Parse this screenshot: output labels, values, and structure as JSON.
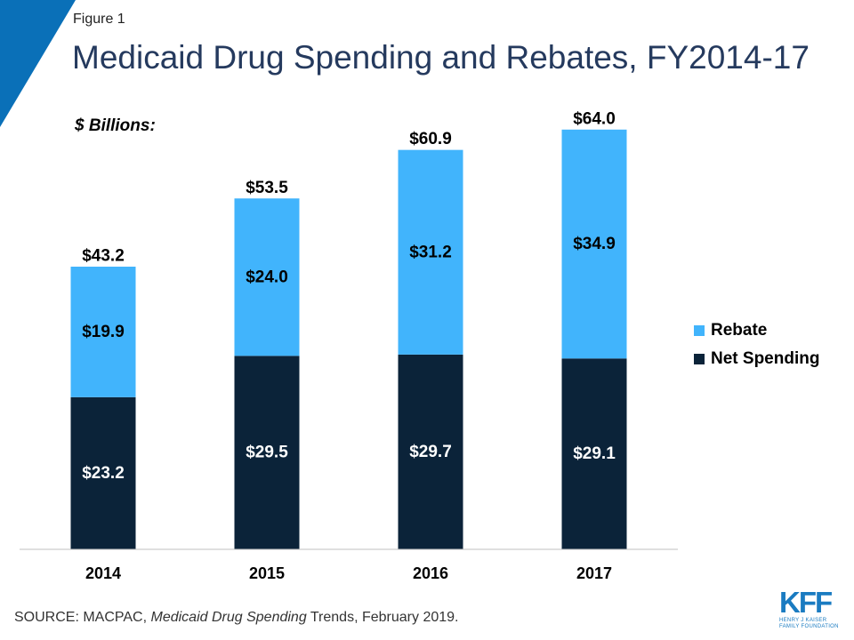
{
  "header": {
    "figure_label": "Figure 1",
    "title": "Medicaid Drug Spending and Rebates, FY2014-17"
  },
  "chart_data": {
    "type": "bar",
    "stacked": true,
    "unit_label": "$ Billions:",
    "categories": [
      "2014",
      "2015",
      "2016",
      "2017"
    ],
    "series": [
      {
        "name": "Net Spending",
        "values": [
          23.2,
          29.5,
          29.7,
          29.1
        ],
        "labels": [
          "$23.2",
          "$29.5",
          "$29.7",
          "$29.1"
        ]
      },
      {
        "name": "Rebate",
        "values": [
          19.9,
          24.0,
          31.2,
          34.9
        ],
        "labels": [
          "$19.9",
          "$24.0",
          "$31.2",
          "$34.9"
        ]
      }
    ],
    "totals": [
      43.2,
      53.5,
      60.9,
      64.0
    ],
    "total_labels": [
      "$43.2",
      "$53.5",
      "$60.9",
      "$64.0"
    ],
    "ylim": [
      0,
      74
    ],
    "grid": false,
    "legend_position": "right",
    "colors": {
      "Net Spending": "#0b2339",
      "Rebate": "#41b4fc"
    }
  },
  "legend": {
    "items": [
      {
        "label": "Rebate",
        "color": "#41b4fc"
      },
      {
        "label": "Net Spending",
        "color": "#0b2339"
      }
    ]
  },
  "source": {
    "prefix": "SOURCE: MACPAC, ",
    "italic": "Medicaid Drug Spending",
    "suffix": " Trends, February 2019."
  },
  "logo": {
    "word": "KFF",
    "line1": "HENRY J KAISER",
    "line2": "FAMILY FOUNDATION"
  },
  "colors": {
    "accent": "#0a70b8",
    "title": "#253a5e"
  }
}
